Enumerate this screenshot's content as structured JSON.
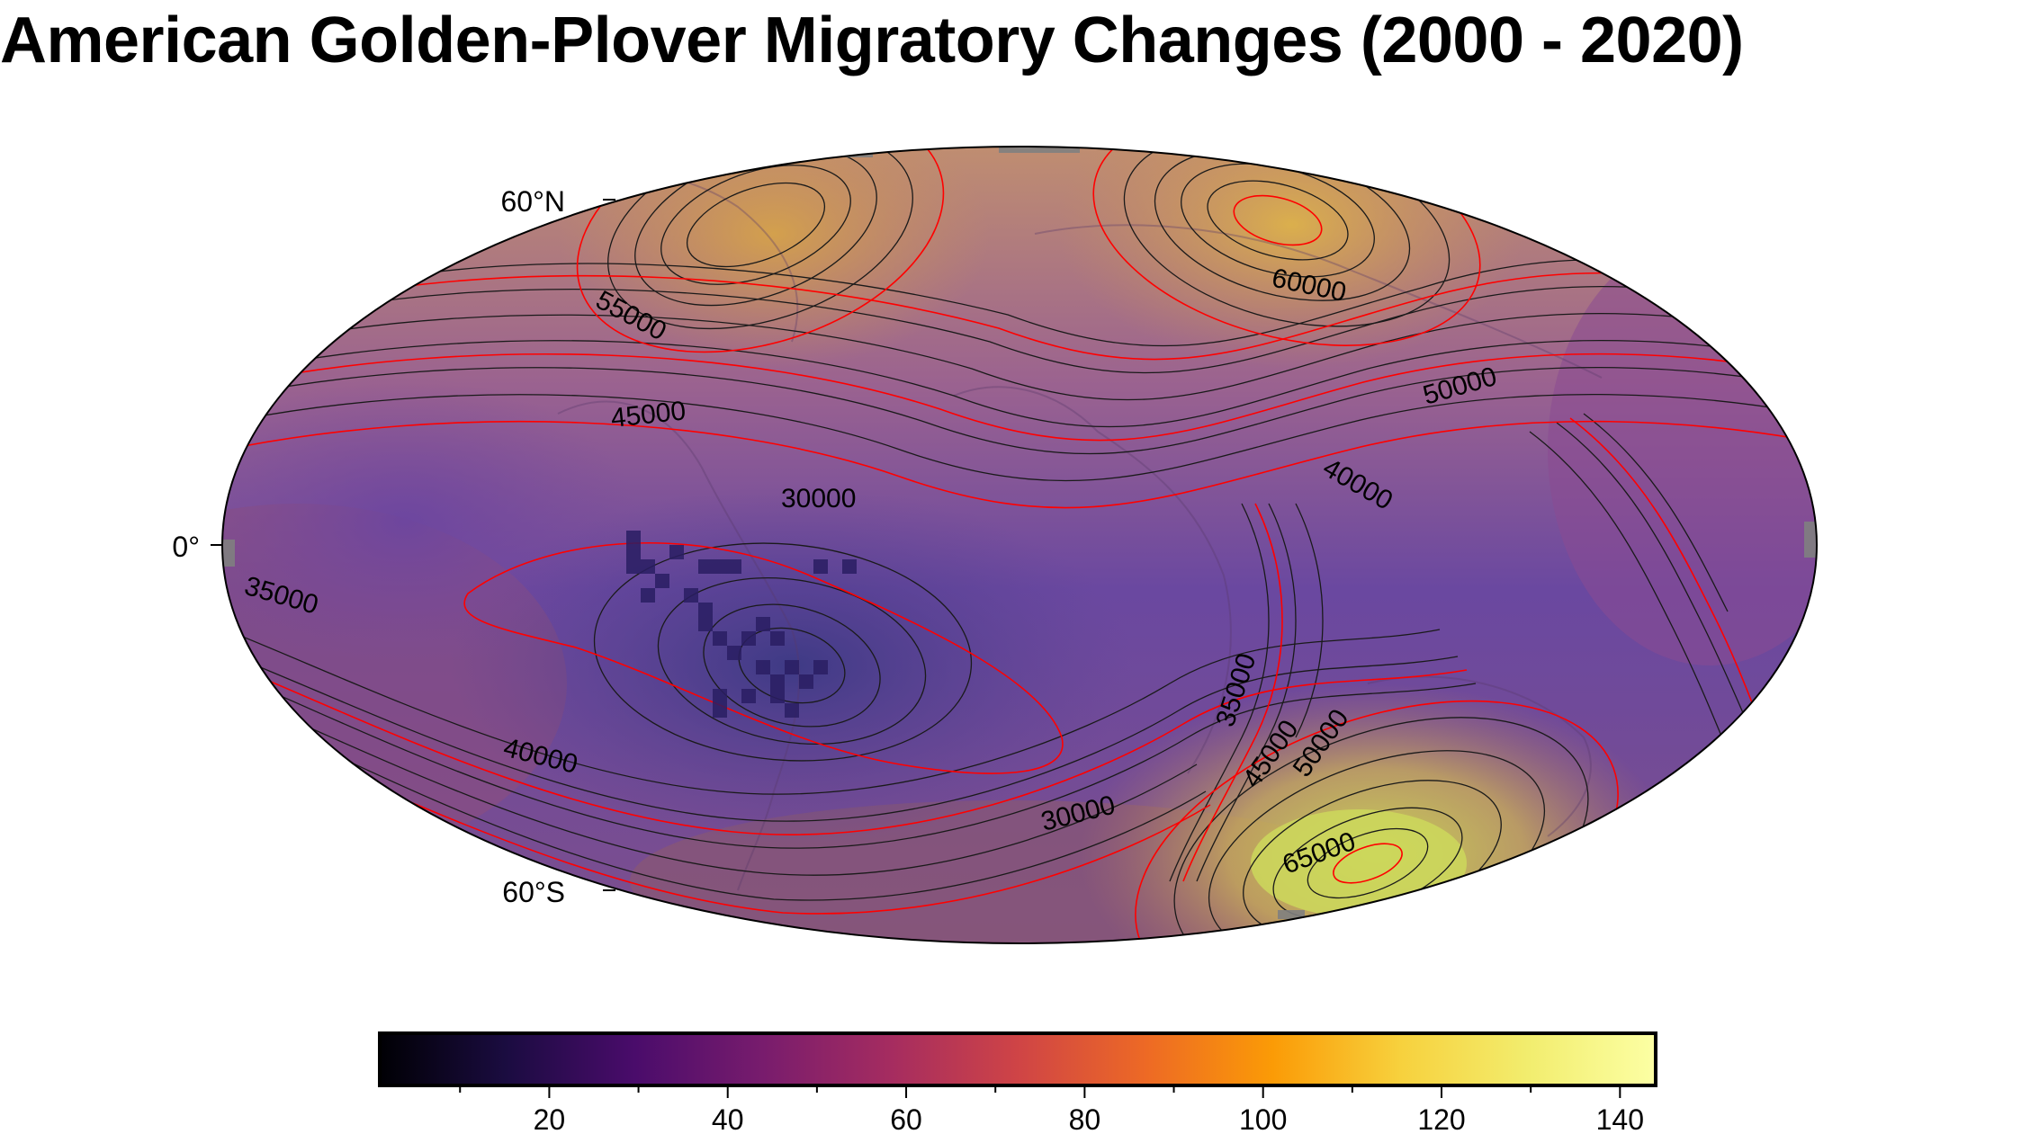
{
  "title": "American Golden-Plover Migratory Changes (2000 - 2020)",
  "map": {
    "projection": "Hammer/Mollweide equal-area (global)",
    "lat_labels": [
      "60°N",
      "0°",
      "60°S"
    ],
    "contour_labels": [
      {
        "name": "contour-55000",
        "text": "55000"
      },
      {
        "name": "contour-60000",
        "text": "60000"
      },
      {
        "name": "contour-45000-north",
        "text": "45000"
      },
      {
        "name": "contour-50000-north",
        "text": "50000"
      },
      {
        "name": "contour-30000-north",
        "text": "30000"
      },
      {
        "name": "contour-40000-east",
        "text": "40000"
      },
      {
        "name": "contour-35000-west",
        "text": "35000"
      },
      {
        "name": "contour-35000-south",
        "text": "35000"
      },
      {
        "name": "contour-40000-south",
        "text": "40000"
      },
      {
        "name": "contour-45000-south",
        "text": "45000"
      },
      {
        "name": "contour-50000-south",
        "text": "50000"
      },
      {
        "name": "contour-30000-south",
        "text": "30000"
      },
      {
        "name": "contour-65000",
        "text": "65000"
      }
    ],
    "colors": {
      "contour_minor": "#1a1a1a",
      "contour_major": "#ff0000",
      "land_gray": "#808080"
    }
  },
  "colorbar": {
    "colormap": "inferno",
    "range": [
      1,
      144
    ],
    "ticks": [
      "20",
      "40",
      "60",
      "80",
      "100",
      "120",
      "140"
    ]
  }
}
